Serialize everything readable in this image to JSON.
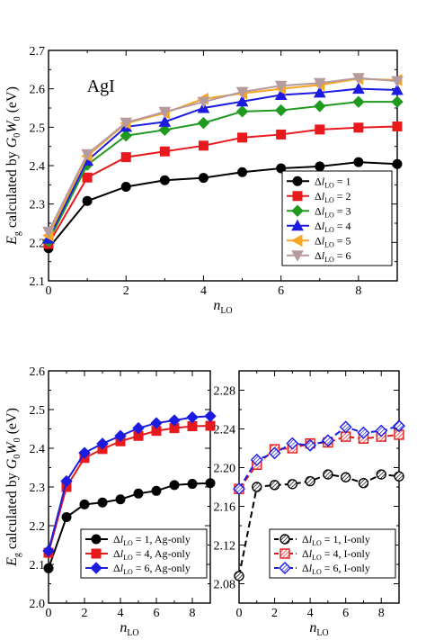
{
  "chart_data": [
    {
      "type": "line",
      "annotation": "AgI",
      "xlabel_main": "n",
      "xlabel_sub": "LO",
      "ylabel_parts": [
        "E",
        "g",
        " calculated by ",
        "G",
        "0",
        "W",
        "0",
        " (eV)"
      ],
      "xlim": [
        0,
        9
      ],
      "ylim": [
        2.1,
        2.7
      ],
      "xticks": [
        0,
        2,
        4,
        6,
        8
      ],
      "yticks": [
        2.1,
        2.2,
        2.3,
        2.4,
        2.5,
        2.6,
        2.7
      ],
      "ytick_labels": [
        "2.1",
        "2.2",
        "2.3",
        "2.4",
        "2.5",
        "2.6",
        "2.7"
      ],
      "grid": false,
      "legend_position": "bottom-right",
      "series": [
        {
          "name": "Δl_LO = 1",
          "color": "#000000",
          "marker": "circle",
          "x": [
            0,
            1,
            2,
            3,
            4,
            5,
            6,
            7,
            8,
            9
          ],
          "y": [
            2.185,
            2.308,
            2.345,
            2.362,
            2.368,
            2.383,
            2.393,
            2.398,
            2.409,
            2.404
          ]
        },
        {
          "name": "Δl_LO = 2",
          "color": "#e8191c",
          "marker": "square",
          "x": [
            0,
            1,
            2,
            3,
            4,
            5,
            6,
            7,
            8,
            9
          ],
          "y": [
            2.196,
            2.369,
            2.422,
            2.437,
            2.452,
            2.473,
            2.481,
            2.494,
            2.499,
            2.502
          ]
        },
        {
          "name": "Δl_LO = 3",
          "color": "#1f9a1f",
          "marker": "diamond",
          "x": [
            0,
            1,
            2,
            3,
            4,
            5,
            6,
            7,
            8,
            9
          ],
          "y": [
            2.203,
            2.402,
            2.478,
            2.493,
            2.511,
            2.541,
            2.544,
            2.555,
            2.566,
            2.566
          ]
        },
        {
          "name": "Δl_LO = 4",
          "color": "#1c1ce0",
          "marker": "triangle-up",
          "x": [
            0,
            1,
            2,
            3,
            4,
            5,
            6,
            7,
            8,
            9
          ],
          "y": [
            2.21,
            2.413,
            2.501,
            2.514,
            2.55,
            2.567,
            2.584,
            2.59,
            2.6,
            2.597
          ]
        },
        {
          "name": "Δl_LO = 5",
          "color": "#f5a623",
          "marker": "triangle-left",
          "x": [
            0,
            1,
            2,
            3,
            4,
            5,
            6,
            7,
            8,
            9
          ],
          "y": [
            2.218,
            2.425,
            2.51,
            2.537,
            2.574,
            2.588,
            2.6,
            2.61,
            2.626,
            2.623
          ]
        },
        {
          "name": "Δl_LO = 6",
          "color": "#b59a9e",
          "marker": "triangle-down",
          "x": [
            0,
            1,
            2,
            3,
            4,
            5,
            6,
            7,
            8,
            9
          ],
          "y": [
            2.228,
            2.43,
            2.512,
            2.54,
            2.566,
            2.592,
            2.608,
            2.615,
            2.628,
            2.62
          ]
        }
      ]
    },
    {
      "type": "line",
      "xlabel_main": "n",
      "xlabel_sub": "LO",
      "ylabel_parts": [
        "E",
        "g",
        " calculated by ",
        "G",
        "0",
        "W",
        "0",
        " (eV)"
      ],
      "xlim": [
        0,
        9
      ],
      "ylim": [
        2.0,
        2.6
      ],
      "xticks": [
        0,
        2,
        4,
        6,
        8
      ],
      "yticks": [
        2.0,
        2.1,
        2.2,
        2.3,
        2.4,
        2.5,
        2.6
      ],
      "ytick_labels": [
        "2.0",
        "2.1",
        "2.2",
        "2.3",
        "2.4",
        "2.5",
        "2.6"
      ],
      "grid": false,
      "legend_position": "bottom-right",
      "series": [
        {
          "name": "Δl_LO = 1, Ag-only",
          "color": "#000000",
          "marker": "circle",
          "x": [
            0,
            1,
            2,
            3,
            4,
            5,
            6,
            7,
            8,
            9
          ],
          "y": [
            2.09,
            2.222,
            2.255,
            2.26,
            2.268,
            2.283,
            2.29,
            2.305,
            2.308,
            2.31
          ]
        },
        {
          "name": "Δl_LO = 4, Ag-only",
          "color": "#e8191c",
          "marker": "square",
          "x": [
            0,
            1,
            2,
            3,
            4,
            5,
            6,
            7,
            8,
            9
          ],
          "y": [
            2.13,
            2.3,
            2.375,
            2.398,
            2.418,
            2.432,
            2.445,
            2.452,
            2.457,
            2.458
          ]
        },
        {
          "name": "Δl_LO = 6, Ag-only",
          "color": "#1c1ce0",
          "marker": "diamond",
          "x": [
            0,
            1,
            2,
            3,
            4,
            5,
            6,
            7,
            8,
            9
          ],
          "y": [
            2.135,
            2.315,
            2.388,
            2.412,
            2.432,
            2.452,
            2.465,
            2.472,
            2.48,
            2.483
          ]
        }
      ]
    },
    {
      "type": "line",
      "xlabel_main": "n",
      "xlabel_sub": "LO",
      "xlim": [
        0,
        9
      ],
      "ylim": [
        2.06,
        2.3
      ],
      "xticks": [
        0,
        2,
        4,
        6,
        8
      ],
      "yticks": [
        2.08,
        2.12,
        2.16,
        2.2,
        2.24,
        2.28
      ],
      "ytick_labels": [
        "2.08",
        "2.12",
        "2.16",
        "2.20",
        "2.24",
        "2.28"
      ],
      "grid": false,
      "legend_position": "bottom-right",
      "series": [
        {
          "name": "Δl_LO = 1, I-only",
          "color": "#000000",
          "marker": "hatched-circle",
          "x": [
            0,
            1,
            2,
            3,
            4,
            5,
            6,
            7,
            8,
            9
          ],
          "y": [
            2.088,
            2.18,
            2.182,
            2.183,
            2.186,
            2.193,
            2.19,
            2.184,
            2.193,
            2.191
          ]
        },
        {
          "name": "Δl_LO = 4, I-only",
          "color": "#e8191c",
          "marker": "hatched-square",
          "x": [
            0,
            1,
            2,
            3,
            4,
            5,
            6,
            7,
            8,
            9
          ],
          "y": [
            2.178,
            2.203,
            2.219,
            2.22,
            2.225,
            2.226,
            2.232,
            2.23,
            2.232,
            2.234
          ]
        },
        {
          "name": "Δl_LO = 6, I-only",
          "color": "#1c1ce0",
          "marker": "hatched-diamond",
          "x": [
            0,
            1,
            2,
            3,
            4,
            5,
            6,
            7,
            8,
            9
          ],
          "y": [
            2.178,
            2.208,
            2.215,
            2.225,
            2.223,
            2.228,
            2.242,
            2.236,
            2.238,
            2.243
          ]
        }
      ]
    }
  ]
}
